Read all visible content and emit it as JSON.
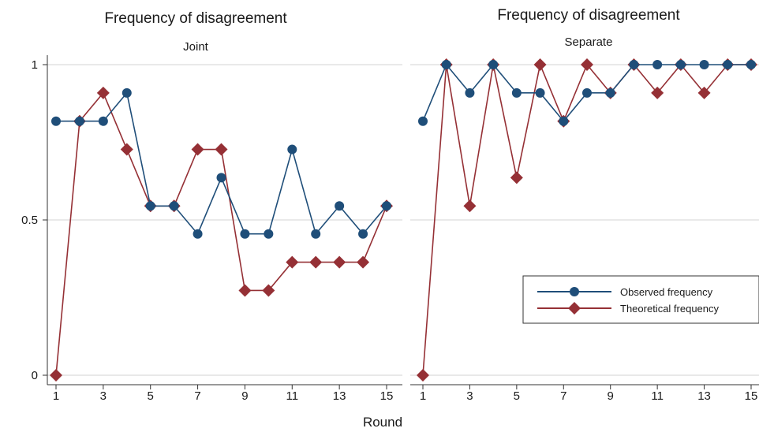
{
  "colors": {
    "observed": "#1f4e79",
    "theoretical": "#953035",
    "grid": "#d3d3d3",
    "axis": "#333333"
  },
  "xlabel": "Round",
  "legend": {
    "observed": "Observed frequency",
    "theoretical": "Theoretical frequency"
  },
  "chart_data": [
    {
      "type": "line",
      "title": "Frequency of disagreement",
      "subtitle": "Joint",
      "xlabel": "Round",
      "ylabel": "",
      "xlim": [
        1,
        15
      ],
      "ylim": [
        0,
        1
      ],
      "xticks": [
        1,
        3,
        5,
        7,
        9,
        11,
        13,
        15
      ],
      "yticks": [
        0,
        0.5,
        1
      ],
      "ytick_labels": [
        "0",
        "0.5",
        "1"
      ],
      "grid": true,
      "x": [
        1,
        2,
        3,
        4,
        5,
        6,
        7,
        8,
        9,
        10,
        11,
        12,
        13,
        14,
        15
      ],
      "series": [
        {
          "name": "Observed frequency",
          "marker": "circle",
          "values": [
            0.818,
            0.818,
            0.818,
            0.909,
            0.545,
            0.545,
            0.455,
            0.636,
            0.455,
            0.455,
            0.727,
            0.455,
            0.545,
            0.455,
            0.545
          ]
        },
        {
          "name": "Theoretical frequency",
          "marker": "diamond",
          "values": [
            0,
            0.818,
            0.909,
            0.727,
            0.545,
            0.545,
            0.727,
            0.727,
            0.273,
            0.273,
            0.364,
            0.364,
            0.364,
            0.364,
            0.545
          ]
        }
      ]
    },
    {
      "type": "line",
      "title": "Frequency of disagreement",
      "subtitle": "Separate",
      "xlabel": "Round",
      "ylabel": "",
      "xlim": [
        1,
        15
      ],
      "ylim": [
        0,
        1
      ],
      "xticks": [
        1,
        3,
        5,
        7,
        9,
        11,
        13,
        15
      ],
      "yticks": [
        0,
        0.5,
        1
      ],
      "grid": true,
      "legend": "bottom-right",
      "x": [
        1,
        2,
        3,
        4,
        5,
        6,
        7,
        8,
        9,
        10,
        11,
        12,
        13,
        14,
        15
      ],
      "series": [
        {
          "name": "Observed frequency",
          "marker": "circle",
          "values": [
            0.818,
            1,
            0.909,
            1,
            0.909,
            0.909,
            0.818,
            0.909,
            0.909,
            1,
            1,
            1,
            1,
            1,
            1
          ]
        },
        {
          "name": "Theoretical frequency",
          "marker": "diamond",
          "values": [
            0,
            1,
            0.545,
            1,
            0.636,
            1,
            0.818,
            1,
            0.909,
            1,
            0.909,
            1,
            0.909,
            1,
            1
          ]
        }
      ]
    }
  ]
}
